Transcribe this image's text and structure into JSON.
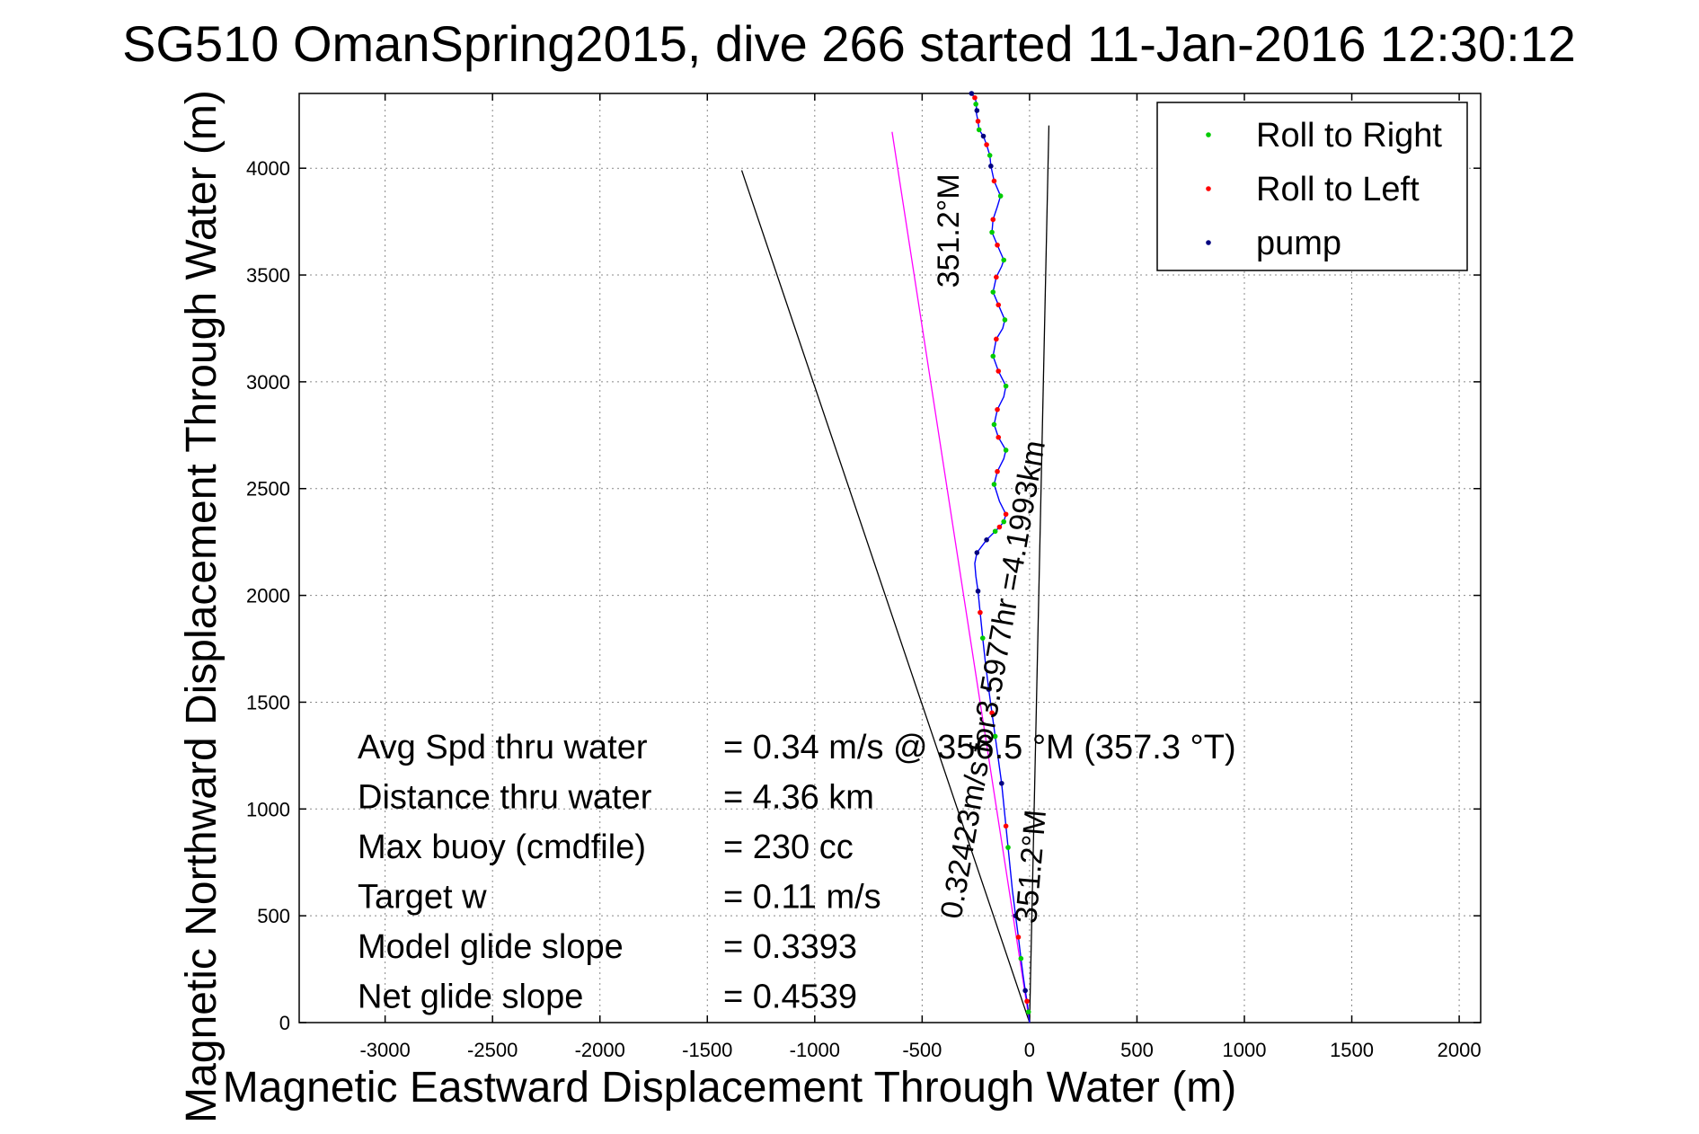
{
  "chart_data": {
    "type": "line",
    "title": "SG510 OmanSpring2015, dive 266 started 11-Jan-2016 12:30:12",
    "xlabel": "Magnetic Eastward Displacement Through Water (m)",
    "ylabel": "Magnetic Northward Displacement Through Water (m)",
    "xlim": [
      -3400,
      2100
    ],
    "ylim": [
      0,
      4350
    ],
    "xticks": [
      -3000,
      -2500,
      -2000,
      -1500,
      -1000,
      -500,
      0,
      500,
      1000,
      1500,
      2000
    ],
    "yticks": [
      0,
      500,
      1000,
      1500,
      2000,
      2500,
      3000,
      3500,
      4000
    ],
    "grid": true,
    "legend_position": "top-right",
    "legend": [
      {
        "name": "Roll to Right",
        "color": "#00cc00"
      },
      {
        "name": "Roll to Left",
        "color": "#ff0000"
      },
      {
        "name": "pump",
        "color": "#000080"
      }
    ],
    "track": {
      "color": "#0000ff",
      "x": [
        0,
        -5,
        -12,
        -20,
        -30,
        -40,
        -52,
        -65,
        -80,
        -90,
        -100,
        -110,
        -120,
        -130,
        -145,
        -160,
        -175,
        -190,
        -205,
        -218,
        -230,
        -240,
        -250,
        -255,
        -245,
        -200,
        -160,
        -140,
        -120,
        -110,
        -140,
        -165,
        -150,
        -120,
        -110,
        -145,
        -165,
        -150,
        -120,
        -110,
        -145,
        -170,
        -155,
        -125,
        -115,
        -145,
        -170,
        -155,
        -130,
        -120,
        -150,
        -175,
        -170,
        -150,
        -135,
        -165,
        -180,
        -185,
        -200,
        -215,
        -235,
        -240,
        -250,
        -245,
        -255,
        -270
      ],
      "y": [
        0,
        50,
        100,
        150,
        220,
        300,
        400,
        500,
        620,
        720,
        820,
        920,
        1020,
        1120,
        1230,
        1340,
        1450,
        1560,
        1680,
        1800,
        1920,
        2020,
        2090,
        2150,
        2200,
        2260,
        2300,
        2320,
        2345,
        2380,
        2440,
        2520,
        2580,
        2640,
        2680,
        2740,
        2800,
        2870,
        2930,
        2980,
        3050,
        3120,
        3200,
        3250,
        3290,
        3360,
        3420,
        3490,
        3540,
        3570,
        3640,
        3700,
        3760,
        3820,
        3870,
        3940,
        4010,
        4060,
        4110,
        4150,
        4180,
        4220,
        4270,
        4300,
        4330,
        4350
      ]
    },
    "roll_right_points": {
      "x": [
        -5,
        -40,
        -100,
        -160,
        -218,
        -160,
        -120,
        -165,
        -110,
        -165,
        -110,
        -170,
        -115,
        -170,
        -120,
        -175,
        -135,
        -185,
        -235,
        -250
      ],
      "y": [
        50,
        300,
        820,
        1340,
        1800,
        2300,
        2345,
        2520,
        2680,
        2800,
        2980,
        3120,
        3290,
        3420,
        3570,
        3700,
        3870,
        4060,
        4180,
        4300
      ]
    },
    "roll_left_points": {
      "x": [
        -12,
        -52,
        -110,
        -175,
        -230,
        -140,
        -110,
        -150,
        -145,
        -150,
        -145,
        -155,
        -145,
        -155,
        -150,
        -170,
        -165,
        -200,
        -240,
        -255
      ],
      "y": [
        100,
        400,
        920,
        1450,
        1920,
        2320,
        2380,
        2580,
        2740,
        2870,
        3050,
        3200,
        3360,
        3490,
        3640,
        3760,
        3940,
        4110,
        4220,
        4330
      ]
    },
    "pump_points": {
      "x": [
        -20,
        -65,
        -130,
        -190,
        -240,
        -245,
        -200,
        -180,
        -215,
        -245,
        -270
      ],
      "y": [
        150,
        500,
        1120,
        1560,
        2020,
        2200,
        2260,
        4010,
        4150,
        4270,
        4350
      ]
    },
    "reference_lines": [
      {
        "name": "",
        "color": "#000000",
        "x": [
          0,
          -1340
        ],
        "y": [
          0,
          3990
        ]
      },
      {
        "name": "",
        "color": "#000000",
        "x": [
          0,
          90
        ],
        "y": [
          0,
          4200
        ]
      },
      {
        "name": "",
        "color": "#ff00ff",
        "x": [
          0,
          -640
        ],
        "y": [
          0,
          4170
        ]
      }
    ],
    "rotated_labels": [
      {
        "text": "351.2°M",
        "x": -330,
        "y": 3440,
        "angle": -90
      },
      {
        "text": "0.32423m/s for3.5977hr =4.1993km",
        "x": -320,
        "y": 480,
        "angle": -80
      },
      {
        "text": "351.2°M",
        "x": 30,
        "y": 460,
        "angle": -85
      }
    ],
    "annotations": [
      {
        "label": "Avg Spd thru water",
        "value": "=  0.34 m/s @ 356.5 °M (357.3 °T)"
      },
      {
        "label": "Distance thru water",
        "value": "=  4.36 km"
      },
      {
        "label": "Max buoy (cmdfile)",
        "value": "= 230 cc"
      },
      {
        "label": "Target w",
        "value": "= 0.11 m/s"
      },
      {
        "label": "Model glide slope",
        "value": "= 0.3393"
      },
      {
        "label": "Net glide slope",
        "value": "= 0.4539"
      }
    ]
  }
}
